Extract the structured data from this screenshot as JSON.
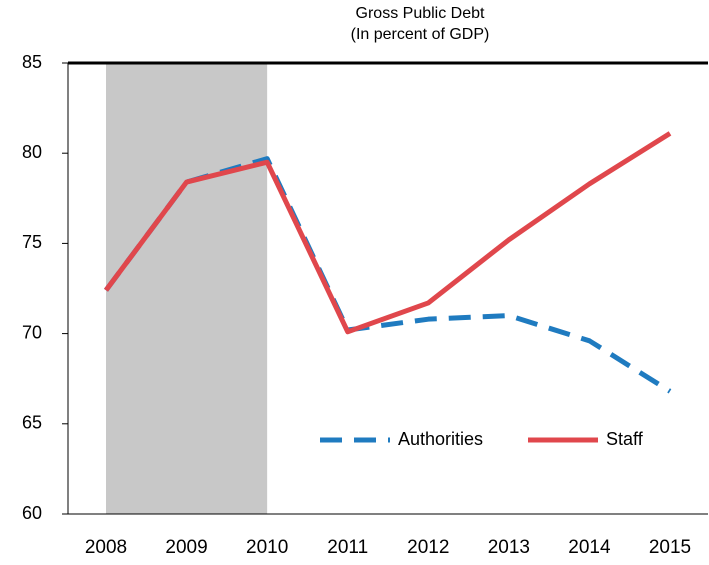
{
  "chart_data": {
    "type": "line",
    "title": "Gross Public Debt",
    "subtitle": "(In percent of GDP)",
    "categories": [
      "2008",
      "2009",
      "2010",
      "2011",
      "2012",
      "2013",
      "2014",
      "2015"
    ],
    "series": [
      {
        "name": "Authorities",
        "color": "#1f7bc0",
        "dash": true,
        "values": [
          72.4,
          78.4,
          79.7,
          70.2,
          70.8,
          71.0,
          69.6,
          66.8
        ]
      },
      {
        "name": "Staff",
        "color": "#e0474c",
        "dash": false,
        "values": [
          72.4,
          78.4,
          79.5,
          70.1,
          71.7,
          75.2,
          78.3,
          81.1
        ]
      }
    ],
    "shaded_categories": [
      "2008",
      "2010"
    ],
    "ylim": [
      60,
      85
    ],
    "yticks": [
      60,
      65,
      70,
      75,
      80,
      85
    ],
    "grid": false,
    "legend": "bottom-right"
  }
}
